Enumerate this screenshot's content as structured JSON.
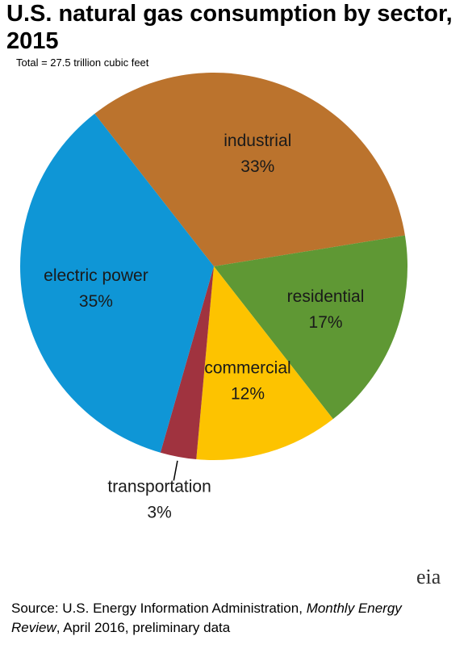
{
  "chart_data": {
    "type": "pie",
    "title": "U.S. natural gas consumption by sector, 2015",
    "subtitle": "Total = 27.5 trillion cubic feet",
    "categories": [
      "industrial",
      "residential",
      "commercial",
      "transportation",
      "electric power"
    ],
    "values": [
      33,
      17,
      12,
      3,
      35
    ],
    "value_labels": [
      "33%",
      "17%",
      "12%",
      "3%",
      "35%"
    ],
    "colors": [
      "#bb732d",
      "#5f9834",
      "#fdc300",
      "#a0333f",
      "#0f96d6"
    ],
    "source_prefix": "Source: U.S. Energy Information Administration,",
    "source_italic": "Monthly Energy Review",
    "source_suffix": ", April 2016, preliminary data",
    "logo": "eia"
  }
}
